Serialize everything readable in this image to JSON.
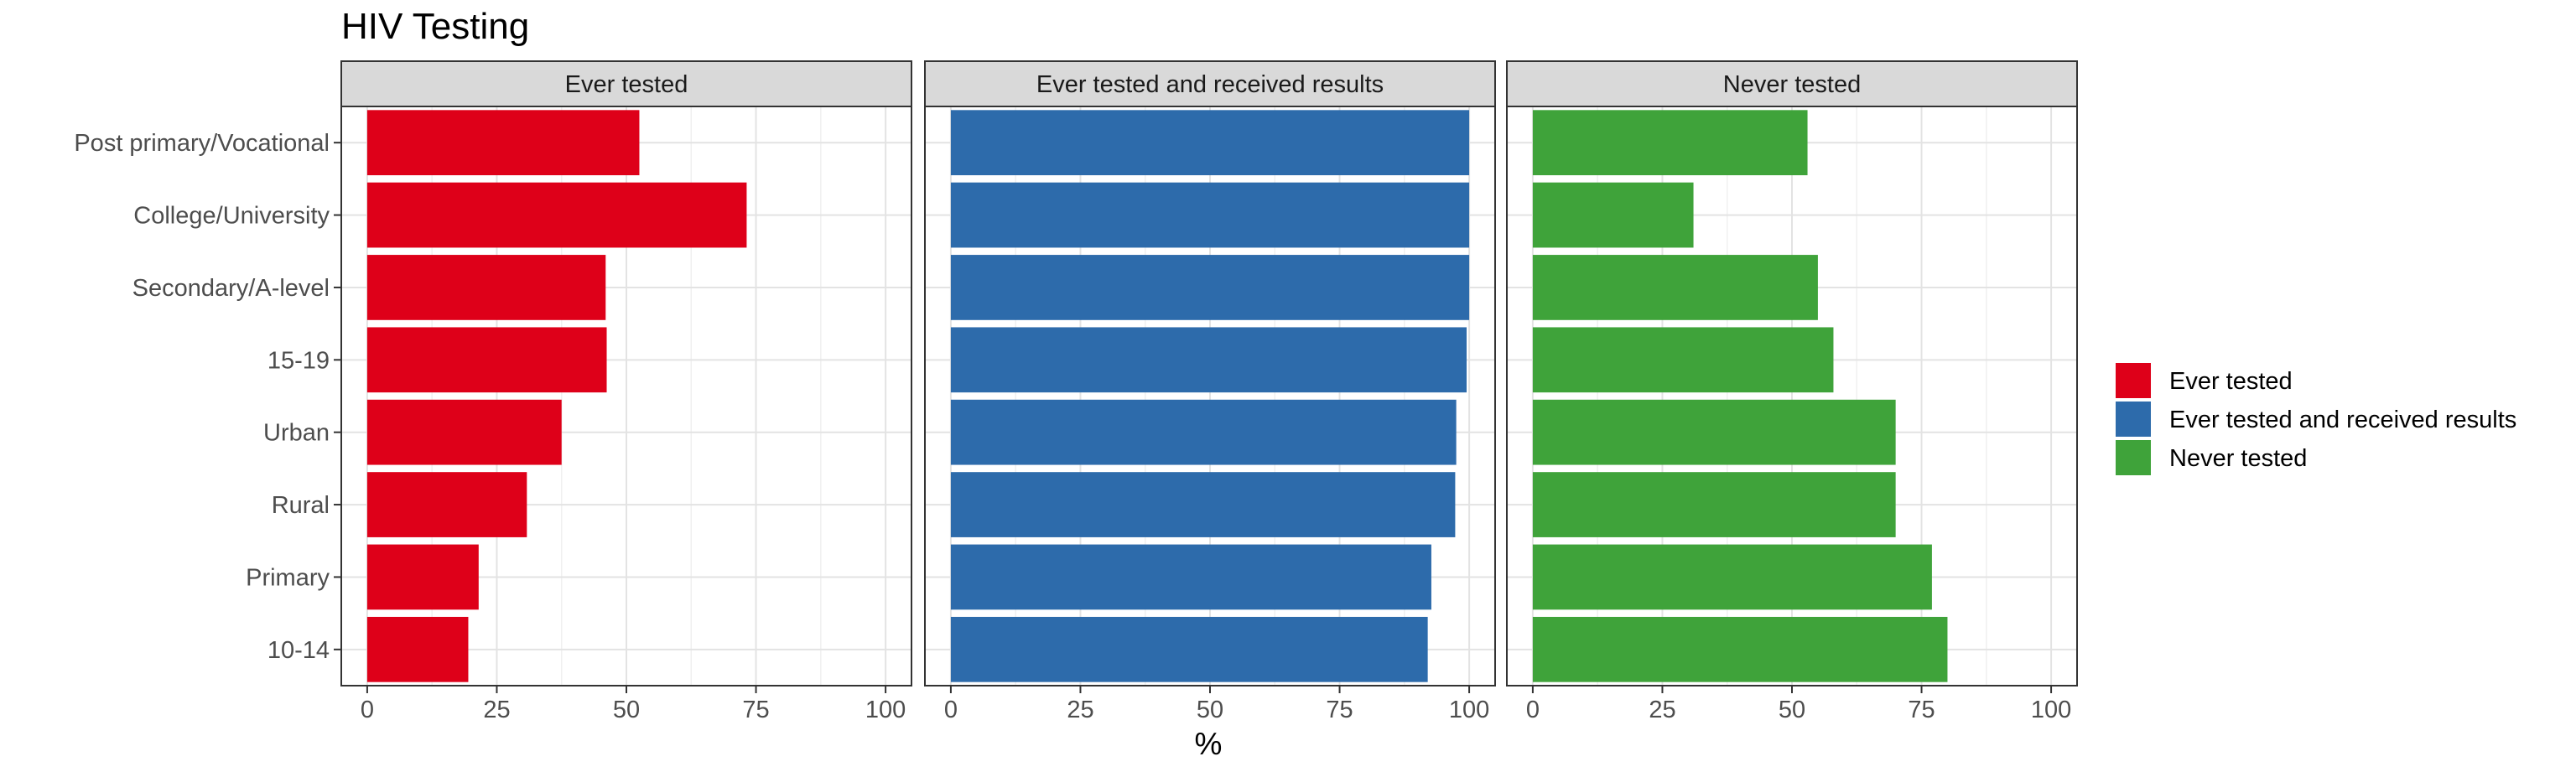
{
  "chart_data": {
    "type": "bar",
    "orientation": "horizontal",
    "title": "HIV Testing",
    "xlabel": "%",
    "ylabel": "",
    "xlim": [
      0,
      100
    ],
    "xticks": [
      "0",
      "25",
      "50",
      "75",
      "100"
    ],
    "categories": [
      "Post primary/Vocational",
      "College/University",
      "Secondary/A-level",
      "15-19",
      "Urban",
      "Rural",
      "Primary",
      "10-14"
    ],
    "series": [
      {
        "name": "Ever tested",
        "color": "#DE0019",
        "values": [
          52.5,
          73.2,
          46,
          46.2,
          37.5,
          30.8,
          21.5,
          19.5
        ]
      },
      {
        "name": "Ever tested and received results",
        "color": "#2D6BAB",
        "values": [
          100,
          100,
          100,
          99.5,
          97.5,
          97.3,
          92.7,
          92
        ]
      },
      {
        "name": "Never tested",
        "color": "#3FA33A",
        "values": [
          53,
          31,
          55,
          58,
          70,
          70,
          77,
          80
        ]
      }
    ],
    "facet_labels": [
      "Ever tested",
      "Ever tested and received results",
      "Never tested"
    ],
    "legend": {
      "placement": "right"
    },
    "grid": true
  }
}
